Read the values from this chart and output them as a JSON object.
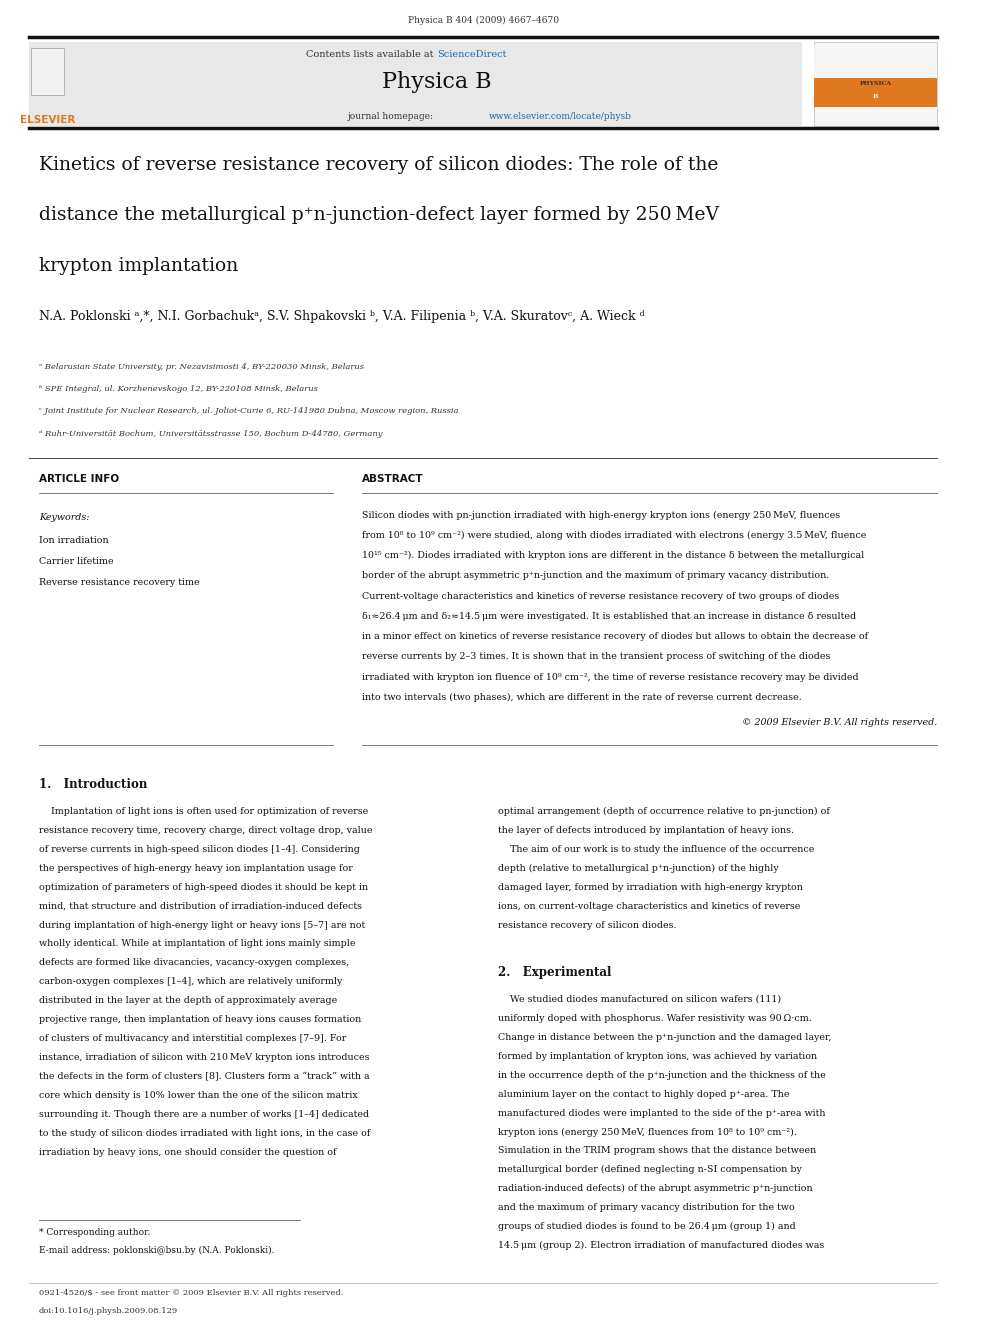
{
  "page_width": 9.92,
  "page_height": 13.23,
  "background_color": "#ffffff",
  "journal_header_bg": "#e8e8e8",
  "header_line_color": "#1a1a1a",
  "elsevier_orange": "#e07820",
  "sciencedirect_blue": "#1a6aab",
  "url_blue": "#1a6aab",
  "top_citation": "Physica B 404 (2009) 4667–4670",
  "journal_name": "Physica B",
  "contents_line": "Contents lists available at ScienceDirect",
  "journal_homepage": "journal homepage: www.elsevier.com/locate/physb",
  "paper_title_line1": "Kinetics of reverse resistance recovery of silicon diodes: The role of the",
  "paper_title_line2": "distance the metallurgical p⁺n-junction-defect layer formed by 250 MeV",
  "paper_title_line3": "krypton implantation",
  "authors": "N.A. Poklonski ᵃ,*, N.I. Gorbachukᵃ, S.V. Shpakovski ᵇ, V.A. Filipenia ᵇ, V.A. Skuratovᶜ, A. Wieck ᵈ",
  "affil_a": "ᵃ Belarusian State University, pr. Nezavisimosti 4, BY-220030 Minsk, Belarus",
  "affil_b": "ᵇ SPE Integral, ul. Korzhenevskogo 12, BY-220108 Minsk, Belarus",
  "affil_c": "ᶜ Joint Institute for Nuclear Research, ul. Joliot-Curie 6, RU-141980 Dubna, Moscow region, Russia",
  "affil_d": "ᵈ Ruhr-Universität Bochum, Universitätsstrasse 150, Bochum D-44780, Germany",
  "article_info_header": "ARTICLE INFO",
  "abstract_header": "ABSTRACT",
  "keywords_label": "Keywords:",
  "keyword1": "Ion irradiation",
  "keyword2": "Carrier lifetime",
  "keyword3": "Reverse resistance recovery time",
  "copyright": "© 2009 Elsevier B.V. All rights reserved.",
  "intro_header": "1.   Introduction",
  "section2_header": "2.   Experimental",
  "footnote_star": "* Corresponding author.",
  "footnote_email": "E-mail address: poklonski@bsu.by (N.A. Poklonski).",
  "footer_left": "0921-4526/$ - see front matter © 2009 Elsevier B.V. All rights reserved.",
  "footer_doi": "doi:10.1016/j.physb.2009.08.129",
  "abstract_lines": [
    "Silicon diodes with pn-junction irradiated with high-energy krypton ions (energy 250 MeV, fluences",
    "from 10⁸ to 10⁹ cm⁻²) were studied, along with diodes irradiated with electrons (energy 3.5 MeV, fluence",
    "10¹⁵ cm⁻²). Diodes irradiated with krypton ions are different in the distance δ between the metallurgical",
    "border of the abrupt asymmetric p⁺n-junction and the maximum of primary vacancy distribution.",
    "Current-voltage characteristics and kinetics of reverse resistance recovery of two groups of diodes",
    "δ₁≈26.4 μm and δ₂≈14.5 μm were investigated. It is established that an increase in distance δ resulted",
    "in a minor effect on kinetics of reverse resistance recovery of diodes but allows to obtain the decrease of",
    "reverse currents by 2–3 times. It is shown that in the transient process of switching of the diodes",
    "irradiated with krypton ion fluence of 10⁹ cm⁻², the time of reverse resistance recovery may be divided",
    "into two intervals (two phases), which are different in the rate of reverse current decrease."
  ],
  "intro1_lines": [
    "    Implantation of light ions is often used for optimization of reverse",
    "resistance recovery time, recovery charge, direct voltage drop, value",
    "of reverse currents in high-speed silicon diodes [1–4]. Considering",
    "the perspectives of high-energy heavy ion implantation usage for",
    "optimization of parameters of high-speed diodes it should be kept in",
    "mind, that structure and distribution of irradiation-induced defects",
    "during implantation of high-energy light or heavy ions [5–7] are not",
    "wholly identical. While at implantation of light ions mainly simple",
    "defects are formed like divacancies, vacancy-oxygen complexes,",
    "carbon-oxygen complexes [1–4], which are relatively uniformly",
    "distributed in the layer at the depth of approximately average",
    "projective range, then implantation of heavy ions causes formation",
    "of clusters of multivacancy and interstitial complexes [7–9]. For",
    "instance, irradiation of silicon with 210 MeV krypton ions introduces",
    "the defects in the form of clusters [8]. Clusters form a “track” with a",
    "core which density is 10% lower than the one of the silicon matrix",
    "surrounding it. Though there are a number of works [1–4] dedicated",
    "to the study of silicon diodes irradiated with light ions, in the case of",
    "irradiation by heavy ions, one should consider the question of"
  ],
  "intro2_lines": [
    "optimal arrangement (depth of occurrence relative to pn-junction) of",
    "the layer of defects introduced by implantation of heavy ions.",
    "    The aim of our work is to study the influence of the occurrence",
    "depth (relative to metallurgical p⁺n-junction) of the highly",
    "damaged layer, formed by irradiation with high-energy krypton",
    "ions, on current-voltage characteristics and kinetics of reverse",
    "resistance recovery of silicon diodes."
  ],
  "sec2_lines": [
    "    We studied diodes manufactured on silicon wafers (111)",
    "uniformly doped with phosphorus. Wafer resistivity was 90 Ω·cm.",
    "Change in distance between the p⁺n-junction and the damaged layer,",
    "formed by implantation of krypton ions, was achieved by variation",
    "in the occurrence depth of the p⁺n-junction and the thickness of the",
    "aluminium layer on the contact to highly doped p⁺-area. The",
    "manufactured diodes were implanted to the side of the p⁺-area with",
    "krypton ions (energy 250 MeV, fluences from 10⁸ to 10⁹ cm⁻²).",
    "Simulation in the TRIM program shows that the distance between",
    "metallurgical border (defined neglecting n-SI compensation by",
    "radiation-induced defects) of the abrupt asymmetric p⁺n-junction",
    "and the maximum of primary vacancy distribution for the two",
    "groups of studied diodes is found to be 26.4 μm (group 1) and",
    "14.5 μm (group 2). Electron irradiation of manufactured diodes was"
  ]
}
